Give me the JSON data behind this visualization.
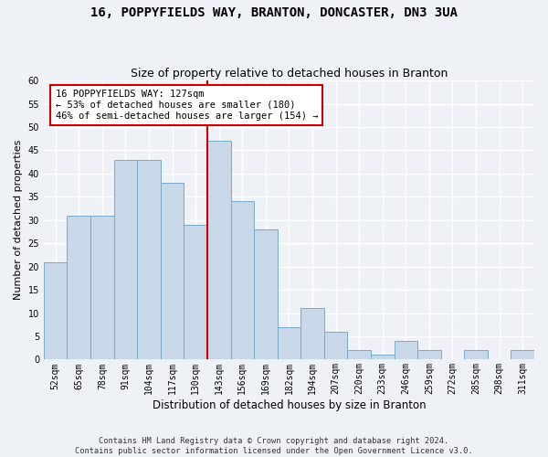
{
  "title": "16, POPPYFIELDS WAY, BRANTON, DONCASTER, DN3 3UA",
  "subtitle": "Size of property relative to detached houses in Branton",
  "xlabel": "Distribution of detached houses by size in Branton",
  "ylabel": "Number of detached properties",
  "categories": [
    "52sqm",
    "65sqm",
    "78sqm",
    "91sqm",
    "104sqm",
    "117sqm",
    "130sqm",
    "143sqm",
    "156sqm",
    "169sqm",
    "182sqm",
    "194sqm",
    "207sqm",
    "220sqm",
    "233sqm",
    "246sqm",
    "259sqm",
    "272sqm",
    "285sqm",
    "298sqm",
    "311sqm"
  ],
  "values": [
    21,
    31,
    31,
    43,
    43,
    38,
    29,
    47,
    34,
    28,
    7,
    11,
    6,
    2,
    1,
    4,
    2,
    0,
    2,
    0,
    2
  ],
  "bar_color": "#c8d8e8",
  "bar_edge_color": "#7aaac8",
  "annotation_text": "16 POPPYFIELDS WAY: 127sqm\n← 53% of detached houses are smaller (180)\n46% of semi-detached houses are larger (154) →",
  "annotation_box_color": "#ffffff",
  "annotation_box_edge": "#cc0000",
  "vline_color": "#cc0000",
  "ylim": [
    0,
    60
  ],
  "yticks": [
    0,
    5,
    10,
    15,
    20,
    25,
    30,
    35,
    40,
    45,
    50,
    55,
    60
  ],
  "background_color": "#eef2f7",
  "grid_color": "#ffffff",
  "footer": "Contains HM Land Registry data © Crown copyright and database right 2024.\nContains public sector information licensed under the Open Government Licence v3.0.",
  "title_fontsize": 10,
  "subtitle_fontsize": 9,
  "xlabel_fontsize": 8.5,
  "ylabel_fontsize": 8,
  "tick_fontsize": 7,
  "annotation_fontsize": 7.5
}
